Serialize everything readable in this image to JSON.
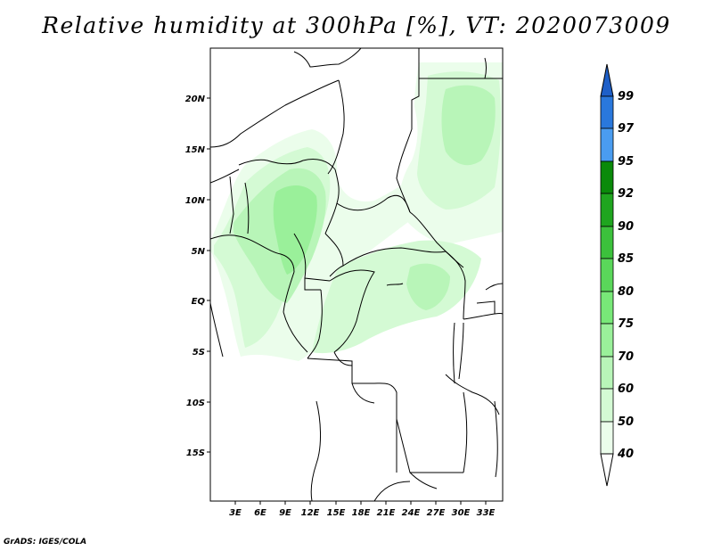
{
  "title": "Relative humidity at 300hPa [%], VT: 2020073009",
  "credit": "GrADS: IGES/COLA",
  "map": {
    "lon_range": [
      0,
      35
    ],
    "lat_range": [
      -20,
      25
    ],
    "lon_ticks": [
      "3E",
      "6E",
      "9E",
      "12E",
      "15E",
      "18E",
      "21E",
      "24E",
      "27E",
      "30E",
      "33E"
    ],
    "lat_ticks": [
      "20N",
      "15N",
      "10N",
      "5N",
      "EQ",
      "5S",
      "10S",
      "15S"
    ],
    "land_color": "#ffffff",
    "border_color": "#000000"
  },
  "colorbar": {
    "labels": [
      "99",
      "97",
      "95",
      "92",
      "90",
      "85",
      "80",
      "75",
      "70",
      "60",
      "50",
      "40"
    ],
    "colors": [
      "#1e5fc8",
      "#2a78dc",
      "#4a9cf0",
      "#0a8a0a",
      "#1fa51f",
      "#3cc13c",
      "#5ad75a",
      "#78e878",
      "#9af09a",
      "#b8f5b8",
      "#d4fad4",
      "#ebfdeb",
      "#ffffff"
    ]
  }
}
